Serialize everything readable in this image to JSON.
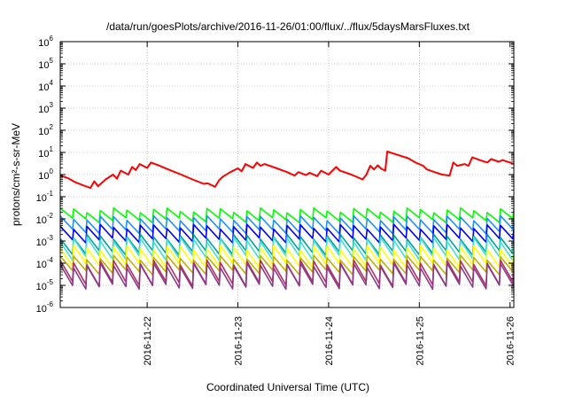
{
  "chart_data": {
    "type": "line",
    "title": "/data/run/goesPlots/archive/2016-11-26/01:00/flux/../flux/5daysMarsFluxes.txt",
    "xlabel": "Coordinated Universal Time (UTC)",
    "ylabel": "protons/cm²-s-sr-MeV",
    "y_scale": "log",
    "ylim": [
      1e-06,
      1000000.0
    ],
    "xlim": [
      "2016-11-21 01:00",
      "2016-11-26 01:00"
    ],
    "grid": true,
    "x_ticks": [
      {
        "date": "2016-11-22 00:00",
        "label": "2016-11-22"
      },
      {
        "date": "2016-11-23 00:00",
        "label": "2016-11-23"
      },
      {
        "date": "2016-11-24 00:00",
        "label": "2016-11-24"
      },
      {
        "date": "2016-11-25 00:00",
        "label": "2016-11-25"
      },
      {
        "date": "2016-11-26 00:00",
        "label": "2016-11-26"
      }
    ],
    "y_ticks": [
      {
        "value": 1e-06,
        "base": "10",
        "exp": "-6"
      },
      {
        "value": 1e-05,
        "base": "10",
        "exp": "-5"
      },
      {
        "value": 0.0001,
        "base": "10",
        "exp": "-4"
      },
      {
        "value": 0.001,
        "base": "10",
        "exp": "-3"
      },
      {
        "value": 0.01,
        "base": "10",
        "exp": "-2"
      },
      {
        "value": 0.1,
        "base": "10",
        "exp": "-1"
      },
      {
        "value": 1.0,
        "base": "10",
        "exp": "0"
      },
      {
        "value": 10.0,
        "base": "10",
        "exp": "1"
      },
      {
        "value": 100.0,
        "base": "10",
        "exp": "2"
      },
      {
        "value": 1000.0,
        "base": "10",
        "exp": "3"
      },
      {
        "value": 10000.0,
        "base": "10",
        "exp": "4"
      },
      {
        "value": 100000.0,
        "base": "10",
        "exp": "5"
      },
      {
        "value": 1000000.0,
        "base": "10",
        "exp": "6"
      }
    ],
    "series": [
      {
        "color": "#ff0000",
        "points": [
          [
            "2016-11-21 01:00",
            0.9
          ],
          [
            "2016-11-21 03:00",
            0.7
          ],
          [
            "2016-11-21 05:00",
            0.45
          ],
          [
            "2016-11-21 07:00",
            0.33
          ],
          [
            "2016-11-21 09:00",
            0.25
          ],
          [
            "2016-11-21 10:00",
            0.5
          ],
          [
            "2016-11-21 11:00",
            0.3
          ],
          [
            "2016-11-21 13:00",
            0.6
          ],
          [
            "2016-11-21 15:00",
            1.0
          ],
          [
            "2016-11-21 16:00",
            0.65
          ],
          [
            "2016-11-21 17:00",
            1.5
          ],
          [
            "2016-11-21 19:00",
            1.0
          ],
          [
            "2016-11-21 20:00",
            2.2
          ],
          [
            "2016-11-21 21:00",
            1.6
          ],
          [
            "2016-11-21 22:00",
            3.0
          ],
          [
            "2016-11-22 00:00",
            2.0
          ],
          [
            "2016-11-22 01:00",
            3.5
          ],
          [
            "2016-11-22 03:00",
            2.6
          ],
          [
            "2016-11-22 06:00",
            1.6
          ],
          [
            "2016-11-22 09:00",
            1.0
          ],
          [
            "2016-11-22 12:00",
            0.6
          ],
          [
            "2016-11-22 15:00",
            0.38
          ],
          [
            "2016-11-22 16:00",
            0.4
          ],
          [
            "2016-11-22 18:00",
            0.28
          ],
          [
            "2016-11-22 19:00",
            0.55
          ],
          [
            "2016-11-22 20:00",
            0.8
          ],
          [
            "2016-11-22 22:00",
            1.3
          ],
          [
            "2016-11-23 00:00",
            1.9
          ],
          [
            "2016-11-23 01:00",
            1.4
          ],
          [
            "2016-11-23 02:00",
            3.0
          ],
          [
            "2016-11-23 04:00",
            2.0
          ],
          [
            "2016-11-23 05:00",
            3.5
          ],
          [
            "2016-11-23 06:00",
            2.5
          ],
          [
            "2016-11-23 07:00",
            3.0
          ],
          [
            "2016-11-23 10:00",
            2.0
          ],
          [
            "2016-11-23 13:00",
            1.3
          ],
          [
            "2016-11-23 15:00",
            0.9
          ],
          [
            "2016-11-23 16:00",
            1.3
          ],
          [
            "2016-11-23 18:00",
            0.95
          ],
          [
            "2016-11-23 19:00",
            1.2
          ],
          [
            "2016-11-23 21:00",
            0.85
          ],
          [
            "2016-11-23 22:00",
            1.5
          ],
          [
            "2016-11-24 00:00",
            1.0
          ],
          [
            "2016-11-24 01:00",
            1.5
          ],
          [
            "2016-11-24 02:00",
            2.2
          ],
          [
            "2016-11-24 03:00",
            1.5
          ],
          [
            "2016-11-24 06:00",
            1.0
          ],
          [
            "2016-11-24 09:00",
            0.6
          ],
          [
            "2016-11-24 10:00",
            1.0
          ],
          [
            "2016-11-24 11:00",
            2.5
          ],
          [
            "2016-11-24 12:00",
            1.7
          ],
          [
            "2016-11-24 13:00",
            2.6
          ],
          [
            "2016-11-24 14:00",
            1.8
          ],
          [
            "2016-11-24 15:00",
            1.5
          ],
          [
            "2016-11-24 15:30",
            11.0
          ],
          [
            "2016-11-24 18:00",
            8.0
          ],
          [
            "2016-11-24 21:00",
            5.5
          ],
          [
            "2016-11-24 23:00",
            3.5
          ],
          [
            "2016-11-25 01:00",
            2.5
          ],
          [
            "2016-11-25 02:00",
            1.7
          ],
          [
            "2016-11-25 04:00",
            1.3
          ],
          [
            "2016-11-25 06:00",
            1.0
          ],
          [
            "2016-11-25 08:00",
            0.9
          ],
          [
            "2016-11-25 09:00",
            3.5
          ],
          [
            "2016-11-25 10:00",
            2.5
          ],
          [
            "2016-11-25 12:00",
            3.0
          ],
          [
            "2016-11-25 13:00",
            2.5
          ],
          [
            "2016-11-25 14:00",
            6.0
          ],
          [
            "2016-11-25 16:00",
            4.5
          ],
          [
            "2016-11-25 18:00",
            3.5
          ],
          [
            "2016-11-25 19:00",
            5.0
          ],
          [
            "2016-11-25 21:00",
            3.8
          ],
          [
            "2016-11-25 22:00",
            4.5
          ],
          [
            "2016-11-26 00:00",
            3.5
          ],
          [
            "2016-11-26 01:00",
            3.0
          ]
        ]
      },
      {
        "color": "#00ff00",
        "sawtooth": {
          "high": 0.025,
          "low": 0.009,
          "teeth": 34
        }
      },
      {
        "color": "#1e90ff",
        "sawtooth": {
          "high": 0.011,
          "low": 0.0028,
          "teeth": 34
        }
      },
      {
        "color": "#0000ff",
        "sawtooth": {
          "high": 0.0045,
          "low": 0.0011,
          "teeth": 34
        }
      },
      {
        "color": "#00a0a0",
        "sawtooth": {
          "high": 0.0016,
          "low": 0.0003,
          "teeth": 34
        }
      },
      {
        "color": "#40e0d0",
        "sawtooth": {
          "high": 0.0012,
          "low": 0.00018,
          "teeth": 34
        }
      },
      {
        "color": "#ffff00",
        "sawtooth": {
          "high": 0.0005,
          "low": 8e-05,
          "teeth": 34
        }
      },
      {
        "color": "#c0b000",
        "sawtooth": {
          "high": 0.00018,
          "low": 4e-05,
          "teeth": 34
        }
      },
      {
        "color": "#b03060",
        "sawtooth": {
          "high": 0.00011,
          "low": 1.2e-05,
          "teeth": 34
        }
      },
      {
        "color": "#8b3a8b",
        "sawtooth": {
          "high": 8e-05,
          "low": 9e-06,
          "teeth": 34
        }
      }
    ]
  }
}
